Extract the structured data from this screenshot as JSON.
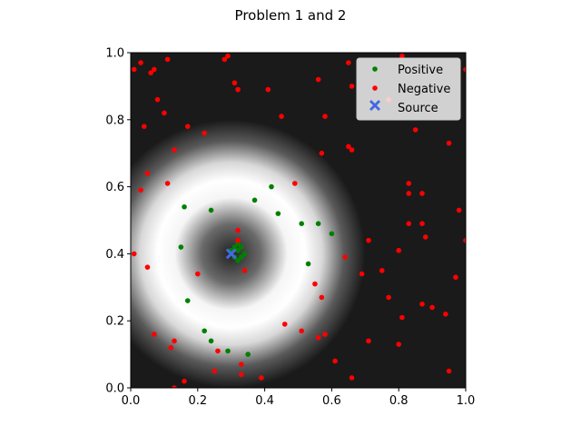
{
  "chart_data": {
    "type": "scatter",
    "title": "Problem 1 and 2",
    "xlabel": "",
    "ylabel": "",
    "xlim": [
      0,
      1
    ],
    "ylim": [
      0,
      1
    ],
    "x_ticks": [
      0.0,
      0.2,
      0.4,
      0.6,
      0.8,
      1.0
    ],
    "y_ticks": [
      0.0,
      0.2,
      0.4,
      0.6,
      0.8,
      1.0
    ],
    "x_tick_labels": [
      "0.0",
      "0.2",
      "0.4",
      "0.6",
      "0.8",
      "1.0"
    ],
    "y_tick_labels": [
      "0.0",
      "0.2",
      "0.4",
      "0.6",
      "0.8",
      "1.0"
    ],
    "grid": false,
    "legend_position": "top-right",
    "background": {
      "type": "radial-intensity",
      "center": [
        0.3,
        0.4
      ],
      "peak_radius": 0.22,
      "colors": {
        "low": "#1a1a1a",
        "high": "#ffffff"
      }
    },
    "series": [
      {
        "name": "Positive",
        "color": "#008000",
        "marker": "circle",
        "points": [
          [
            0.42,
            0.6
          ],
          [
            0.37,
            0.56
          ],
          [
            0.16,
            0.54
          ],
          [
            0.24,
            0.53
          ],
          [
            0.44,
            0.52
          ],
          [
            0.51,
            0.49
          ],
          [
            0.56,
            0.49
          ],
          [
            0.6,
            0.46
          ],
          [
            0.15,
            0.42
          ],
          [
            0.53,
            0.37
          ],
          [
            0.17,
            0.26
          ],
          [
            0.22,
            0.17
          ],
          [
            0.24,
            0.14
          ],
          [
            0.29,
            0.11
          ],
          [
            0.35,
            0.1
          ],
          [
            0.32,
            0.43
          ],
          [
            0.31,
            0.42
          ],
          [
            0.33,
            0.42
          ],
          [
            0.3,
            0.41
          ],
          [
            0.32,
            0.41
          ],
          [
            0.34,
            0.4
          ],
          [
            0.31,
            0.39
          ],
          [
            0.33,
            0.39
          ],
          [
            0.32,
            0.38
          ]
        ]
      },
      {
        "name": "Negative",
        "color": "#ff0000",
        "marker": "circle",
        "points": [
          [
            0.01,
            0.95
          ],
          [
            0.03,
            0.97
          ],
          [
            0.06,
            0.94
          ],
          [
            0.07,
            0.95
          ],
          [
            0.11,
            0.98
          ],
          [
            0.28,
            0.98
          ],
          [
            0.29,
            0.99
          ],
          [
            0.31,
            0.91
          ],
          [
            0.32,
            0.89
          ],
          [
            0.41,
            0.89
          ],
          [
            0.56,
            0.92
          ],
          [
            0.65,
            0.97
          ],
          [
            0.66,
            0.9
          ],
          [
            0.81,
            0.99
          ],
          [
            1.0,
            0.95
          ],
          [
            0.08,
            0.86
          ],
          [
            0.1,
            0.82
          ],
          [
            0.04,
            0.78
          ],
          [
            0.17,
            0.78
          ],
          [
            0.22,
            0.76
          ],
          [
            0.45,
            0.81
          ],
          [
            0.58,
            0.81
          ],
          [
            0.77,
            0.86
          ],
          [
            0.85,
            0.77
          ],
          [
            0.13,
            0.71
          ],
          [
            0.57,
            0.7
          ],
          [
            0.65,
            0.72
          ],
          [
            0.66,
            0.71
          ],
          [
            0.95,
            0.73
          ],
          [
            0.05,
            0.64
          ],
          [
            0.03,
            0.59
          ],
          [
            0.11,
            0.61
          ],
          [
            0.49,
            0.61
          ],
          [
            0.83,
            0.61
          ],
          [
            0.83,
            0.58
          ],
          [
            0.87,
            0.58
          ],
          [
            0.98,
            0.53
          ],
          [
            0.83,
            0.49
          ],
          [
            0.87,
            0.49
          ],
          [
            0.88,
            0.45
          ],
          [
            0.32,
            0.47
          ],
          [
            0.32,
            0.44
          ],
          [
            0.71,
            0.44
          ],
          [
            0.01,
            0.4
          ],
          [
            0.8,
            0.41
          ],
          [
            1.0,
            0.44
          ],
          [
            0.64,
            0.39
          ],
          [
            0.05,
            0.36
          ],
          [
            0.2,
            0.34
          ],
          [
            0.34,
            0.35
          ],
          [
            0.69,
            0.34
          ],
          [
            0.75,
            0.35
          ],
          [
            0.97,
            0.33
          ],
          [
            0.55,
            0.31
          ],
          [
            0.57,
            0.27
          ],
          [
            0.77,
            0.27
          ],
          [
            0.87,
            0.25
          ],
          [
            0.9,
            0.24
          ],
          [
            0.94,
            0.22
          ],
          [
            0.81,
            0.21
          ],
          [
            0.46,
            0.19
          ],
          [
            0.51,
            0.17
          ],
          [
            0.56,
            0.15
          ],
          [
            0.58,
            0.16
          ],
          [
            0.07,
            0.16
          ],
          [
            0.13,
            0.14
          ],
          [
            0.12,
            0.12
          ],
          [
            0.26,
            0.11
          ],
          [
            0.71,
            0.14
          ],
          [
            0.8,
            0.13
          ],
          [
            0.33,
            0.07
          ],
          [
            0.61,
            0.08
          ],
          [
            0.25,
            0.05
          ],
          [
            0.33,
            0.04
          ],
          [
            0.39,
            0.03
          ],
          [
            0.66,
            0.03
          ],
          [
            0.16,
            0.02
          ],
          [
            0.95,
            0.05
          ],
          [
            0.13,
            0.0
          ]
        ]
      },
      {
        "name": "Source",
        "color": "#4169e1",
        "marker": "X",
        "points": [
          [
            0.3,
            0.4
          ]
        ]
      }
    ]
  }
}
